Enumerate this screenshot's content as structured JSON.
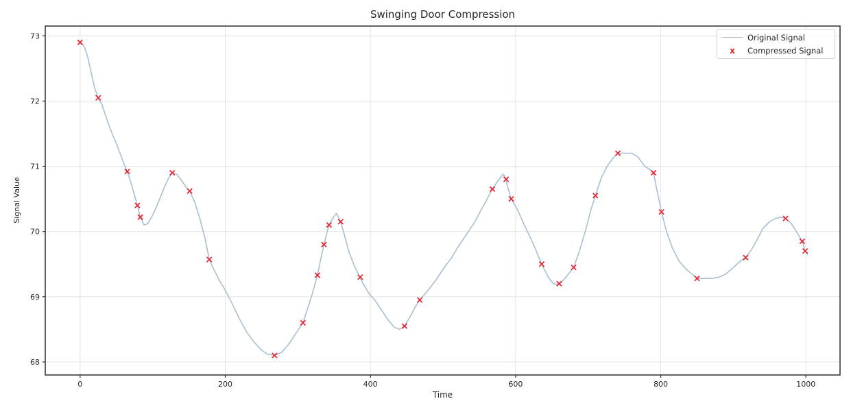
{
  "chart_data": {
    "type": "line",
    "title": "Swinging Door Compression",
    "xlabel": "Time",
    "ylabel": "Signal Value",
    "xlim": [
      -48,
      1047
    ],
    "ylim": [
      67.8,
      73.15
    ],
    "xticks": [
      0,
      200,
      400,
      600,
      800,
      1000
    ],
    "yticks": [
      68,
      69,
      70,
      71,
      72,
      73
    ],
    "grid": true,
    "colors": {
      "original_line": "#a7bfd4",
      "compressed_marker": "#e8222e",
      "grid": "#e3e3e3",
      "spine": "#2e2e2e",
      "text": "#262626"
    },
    "legend": {
      "position": "upper right",
      "entries": [
        {
          "label": "Original Signal",
          "marker": "line"
        },
        {
          "label": "Compressed Signal",
          "marker": "x"
        }
      ]
    },
    "series": [
      {
        "name": "Original Signal",
        "type": "line",
        "color": "#a7bfd4",
        "points": [
          [
            0,
            72.9
          ],
          [
            5,
            72.85
          ],
          [
            10,
            72.7
          ],
          [
            15,
            72.45
          ],
          [
            20,
            72.2
          ],
          [
            25,
            72.05
          ],
          [
            30,
            71.95
          ],
          [
            35,
            71.78
          ],
          [
            40,
            71.62
          ],
          [
            45,
            71.48
          ],
          [
            50,
            71.35
          ],
          [
            55,
            71.2
          ],
          [
            60,
            71.05
          ],
          [
            65,
            70.92
          ],
          [
            70,
            70.75
          ],
          [
            75,
            70.55
          ],
          [
            79,
            70.4
          ],
          [
            83,
            70.22
          ],
          [
            88,
            70.1
          ],
          [
            93,
            70.12
          ],
          [
            100,
            70.25
          ],
          [
            108,
            70.45
          ],
          [
            115,
            70.65
          ],
          [
            121,
            70.8
          ],
          [
            127,
            70.9
          ],
          [
            133,
            70.88
          ],
          [
            140,
            70.78
          ],
          [
            146,
            70.68
          ],
          [
            151,
            70.62
          ],
          [
            158,
            70.45
          ],
          [
            165,
            70.2
          ],
          [
            172,
            69.9
          ],
          [
            178,
            69.57
          ],
          [
            185,
            69.4
          ],
          [
            192,
            69.25
          ],
          [
            200,
            69.1
          ],
          [
            210,
            68.88
          ],
          [
            220,
            68.65
          ],
          [
            230,
            68.45
          ],
          [
            240,
            68.3
          ],
          [
            250,
            68.18
          ],
          [
            258,
            68.12
          ],
          [
            268,
            68.1
          ],
          [
            278,
            68.15
          ],
          [
            288,
            68.28
          ],
          [
            298,
            68.45
          ],
          [
            307,
            68.6
          ],
          [
            313,
            68.8
          ],
          [
            320,
            69.05
          ],
          [
            327,
            69.33
          ],
          [
            332,
            69.6
          ],
          [
            336,
            69.8
          ],
          [
            340,
            69.98
          ],
          [
            343,
            70.1
          ],
          [
            348,
            70.2
          ],
          [
            353,
            70.28
          ],
          [
            356,
            70.22
          ],
          [
            359,
            70.15
          ],
          [
            364,
            69.95
          ],
          [
            370,
            69.7
          ],
          [
            377,
            69.5
          ],
          [
            384,
            69.33
          ],
          [
            390,
            69.2
          ],
          [
            398,
            69.05
          ],
          [
            406,
            68.95
          ],
          [
            415,
            68.8
          ],
          [
            424,
            68.65
          ],
          [
            433,
            68.53
          ],
          [
            440,
            68.5
          ],
          [
            447,
            68.55
          ],
          [
            455,
            68.7
          ],
          [
            462,
            68.85
          ],
          [
            468,
            68.95
          ],
          [
            478,
            69.08
          ],
          [
            490,
            69.25
          ],
          [
            502,
            69.45
          ],
          [
            512,
            69.6
          ],
          [
            520,
            69.75
          ],
          [
            532,
            69.95
          ],
          [
            544,
            70.15
          ],
          [
            556,
            70.4
          ],
          [
            568,
            70.65
          ],
          [
            576,
            70.78
          ],
          [
            583,
            70.88
          ],
          [
            586,
            70.82
          ],
          [
            590,
            70.65
          ],
          [
            594,
            70.5
          ],
          [
            602,
            70.35
          ],
          [
            612,
            70.1
          ],
          [
            624,
            69.82
          ],
          [
            636,
            69.5
          ],
          [
            645,
            69.3
          ],
          [
            652,
            69.2
          ],
          [
            660,
            69.19
          ],
          [
            668,
            69.28
          ],
          [
            680,
            69.45
          ],
          [
            688,
            69.7
          ],
          [
            696,
            70.0
          ],
          [
            703,
            70.3
          ],
          [
            710,
            70.55
          ],
          [
            718,
            70.82
          ],
          [
            726,
            71.0
          ],
          [
            734,
            71.12
          ],
          [
            741,
            71.2
          ],
          [
            750,
            71.2
          ],
          [
            760,
            71.2
          ],
          [
            768,
            71.15
          ],
          [
            778,
            71.0
          ],
          [
            785,
            70.95
          ],
          [
            790,
            70.9
          ],
          [
            795,
            70.62
          ],
          [
            801,
            70.3
          ],
          [
            808,
            70.0
          ],
          [
            816,
            69.75
          ],
          [
            825,
            69.55
          ],
          [
            835,
            69.42
          ],
          [
            845,
            69.33
          ],
          [
            850,
            69.28
          ],
          [
            860,
            69.28
          ],
          [
            870,
            69.28
          ],
          [
            880,
            69.3
          ],
          [
            890,
            69.35
          ],
          [
            900,
            69.45
          ],
          [
            910,
            69.55
          ],
          [
            917,
            69.6
          ],
          [
            925,
            69.72
          ],
          [
            933,
            69.88
          ],
          [
            941,
            70.05
          ],
          [
            950,
            70.15
          ],
          [
            958,
            70.2
          ],
          [
            966,
            70.22
          ],
          [
            972,
            70.2
          ],
          [
            980,
            70.12
          ],
          [
            988,
            69.98
          ],
          [
            995,
            69.85
          ],
          [
            999,
            69.7
          ],
          [
            1002,
            69.65
          ]
        ]
      },
      {
        "name": "Compressed Signal",
        "type": "scatter",
        "marker": "x",
        "color": "#e8222e",
        "points": [
          [
            0,
            72.9
          ],
          [
            25,
            72.05
          ],
          [
            65,
            70.92
          ],
          [
            79,
            70.4
          ],
          [
            83,
            70.22
          ],
          [
            127,
            70.9
          ],
          [
            151,
            70.62
          ],
          [
            178,
            69.57
          ],
          [
            268,
            68.1
          ],
          [
            307,
            68.6
          ],
          [
            327,
            69.33
          ],
          [
            336,
            69.8
          ],
          [
            343,
            70.1
          ],
          [
            359,
            70.15
          ],
          [
            386,
            69.3
          ],
          [
            447,
            68.55
          ],
          [
            468,
            68.95
          ],
          [
            568,
            70.65
          ],
          [
            587,
            70.8
          ],
          [
            594,
            70.5
          ],
          [
            636,
            69.5
          ],
          [
            660,
            69.2
          ],
          [
            680,
            69.45
          ],
          [
            710,
            70.55
          ],
          [
            741,
            71.2
          ],
          [
            790,
            70.9
          ],
          [
            801,
            70.3
          ],
          [
            850,
            69.28
          ],
          [
            917,
            69.6
          ],
          [
            972,
            70.2
          ],
          [
            995,
            69.85
          ],
          [
            999,
            69.7
          ]
        ]
      }
    ]
  }
}
